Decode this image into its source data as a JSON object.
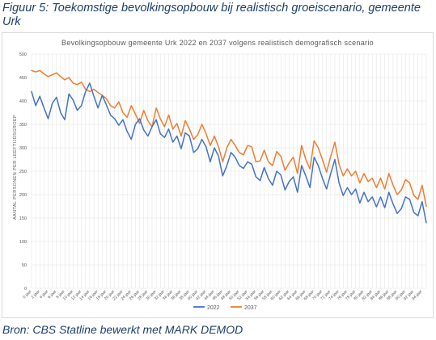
{
  "figure": {
    "caption": "Figuur 5: Toekomstige bevolkingsopbouw bij realistisch groeiscenario, gemeente Urk",
    "source": "Bron: CBS Statline bewerkt met MARK DEMOD"
  },
  "colors": {
    "series_2022": "#4472c4",
    "series_2037": "#ed7d31",
    "grid": "#e2e2e2",
    "caption": "#1f3f6b"
  },
  "chart_data": {
    "type": "line",
    "title": "Bevolkingsopbouw gemeente Urk 2022 en 2037 volgens realistisch demografisch scenario",
    "xlabel": "",
    "ylabel": "AANTAL PERSONEN PER LEEFTIJDSGROEP",
    "ylim": [
      0,
      500
    ],
    "yticks": [
      0,
      50,
      100,
      150,
      200,
      250,
      300,
      350,
      400,
      450,
      500
    ],
    "grid": true,
    "legend_position": "bottom",
    "x": [
      "0 jaar",
      "1 jaar",
      "2 jaar",
      "3 jaar",
      "4 jaar",
      "5 jaar",
      "6 jaar",
      "7 jaar",
      "8 jaar",
      "9 jaar",
      "10 jaar",
      "11 jaar",
      "12 jaar",
      "13 jaar",
      "14 jaar",
      "15 jaar",
      "16 jaar",
      "17 jaar",
      "18 jaar",
      "19 jaar",
      "20 jaar",
      "21 jaar",
      "22 jaar",
      "23 jaar",
      "24 jaar",
      "25 jaar",
      "26 jaar",
      "27 jaar",
      "28 jaar",
      "29 jaar",
      "30 jaar",
      "31 jaar",
      "32 jaar",
      "33 jaar",
      "34 jaar",
      "35 jaar",
      "36 jaar",
      "37 jaar",
      "38 jaar",
      "39 jaar",
      "40 jaar",
      "41 jaar",
      "42 jaar",
      "43 jaar",
      "44 jaar",
      "45 jaar",
      "46 jaar",
      "47 jaar",
      "48 jaar",
      "49 jaar",
      "50 jaar",
      "51 jaar",
      "52 jaar",
      "53 jaar",
      "54 jaar",
      "55 jaar",
      "56 jaar",
      "57 jaar",
      "58 jaar",
      "59 jaar",
      "60 jaar",
      "61 jaar",
      "62 jaar",
      "63 jaar",
      "64 jaar",
      "65 jaar",
      "66 jaar",
      "67 jaar",
      "68 jaar",
      "69 jaar",
      "70 jaar",
      "71 jaar",
      "72 jaar",
      "73 jaar",
      "74 jaar",
      "75 jaar",
      "76 jaar",
      "77 jaar",
      "78 jaar",
      "79 jaar",
      "80 jaar",
      "81 jaar",
      "82 jaar",
      "83 jaar",
      "84 jaar",
      "85 jaar",
      "86 jaar",
      "87 jaar",
      "88 jaar",
      "89 jaar",
      "90 jaar",
      "91 jaar",
      "92 jaar",
      "93 jaar",
      "94 jaar",
      "95 jaar"
    ],
    "xtick_labels": [
      "0 jaar",
      "2 jaar",
      "4 jaar",
      "6 jaar",
      "8 jaar",
      "10 jaar",
      "12 jaar",
      "14 jaar",
      "16 jaar",
      "18 jaar",
      "20 jaar",
      "22 jaar",
      "24 jaar",
      "26 jaar",
      "28 jaar",
      "30 jaar",
      "32 jaar",
      "34 jaar",
      "36 jaar",
      "38 jaar",
      "40 jaar",
      "42 jaar",
      "44 jaar",
      "46 jaar",
      "48 jaar",
      "50 jaar",
      "52 jaar",
      "54 jaar",
      "56 jaar",
      "58 jaar",
      "60 jaar",
      "62 jaar",
      "64 jaar",
      "66 jaar",
      "68 jaar",
      "70 jaar",
      "72 jaar",
      "74 jaar",
      "76 jaar",
      "78 jaar",
      "80 jaar",
      "82 jaar",
      "84 jaar",
      "86 jaar",
      "88 jaar",
      "90 jaar",
      "92 jaar",
      "94 jaar"
    ],
    "series": [
      {
        "name": "2022",
        "values": [
          420,
          390,
          410,
          385,
          362,
          395,
          408,
          375,
          360,
          415,
          402,
          380,
          390,
          420,
          438,
          410,
          385,
          412,
          392,
          370,
          362,
          348,
          360,
          335,
          318,
          350,
          362,
          338,
          325,
          345,
          360,
          330,
          322,
          340,
          312,
          325,
          298,
          332,
          325,
          290,
          298,
          318,
          302,
          270,
          300,
          282,
          240,
          262,
          290,
          280,
          262,
          256,
          270,
          265,
          238,
          230,
          258,
          234,
          220,
          250,
          242,
          210,
          228,
          238,
          205,
          262,
          240,
          215,
          280,
          262,
          235,
          212,
          245,
          275,
          225,
          198,
          215,
          200,
          212,
          182,
          205,
          185,
          195,
          174,
          195,
          172,
          205,
          180,
          160,
          170,
          195,
          190,
          162,
          155,
          185,
          140
        ]
      },
      {
        "name": "2037",
        "values": [
          465,
          462,
          465,
          458,
          452,
          456,
          460,
          452,
          445,
          450,
          438,
          435,
          440,
          425,
          420,
          425,
          418,
          412,
          405,
          390,
          385,
          398,
          375,
          365,
          390,
          372,
          352,
          380,
          358,
          345,
          385,
          362,
          345,
          370,
          340,
          352,
          325,
          358,
          340,
          318,
          328,
          350,
          330,
          305,
          325,
          302,
          270,
          300,
          318,
          305,
          290,
          285,
          305,
          302,
          270,
          272,
          295,
          270,
          262,
          292,
          282,
          252,
          268,
          280,
          245,
          305,
          275,
          255,
          315,
          300,
          275,
          248,
          282,
          312,
          265,
          240,
          255,
          240,
          250,
          225,
          245,
          228,
          235,
          215,
          235,
          212,
          245,
          220,
          200,
          210,
          232,
          225,
          198,
          190,
          220,
          175
        ]
      }
    ]
  }
}
